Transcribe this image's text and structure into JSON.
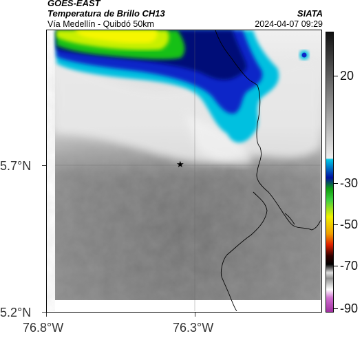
{
  "header": {
    "source": "GOES-EAST",
    "product": "Temperatura de Brillo CH13",
    "route": "Vía Medellín - Quibdó 50km",
    "agency": "SIATA",
    "datetime": "2024-04-07 09:29"
  },
  "axes": {
    "lat_labels": [
      "5.7°N",
      "5.2°N"
    ],
    "lon_labels": [
      "76.8°W",
      "76.3°W"
    ]
  },
  "colorbar": {
    "labels": [
      "20",
      "-30",
      "-50",
      "-70",
      "-90"
    ],
    "colors": {
      "warm_dark": "#1a1a1a",
      "warm_light": "#f2f2f2",
      "cyan": "#00c8e6",
      "blue": "#0010a0",
      "green": "#10c010",
      "yellow": "#f0f000",
      "red": "#e02000",
      "black": "#000000",
      "gray": "#c8c8c8",
      "purple": "#a030a0"
    }
  },
  "map": {
    "marker": "star-icon",
    "background_gray": "#7a7a7a"
  }
}
